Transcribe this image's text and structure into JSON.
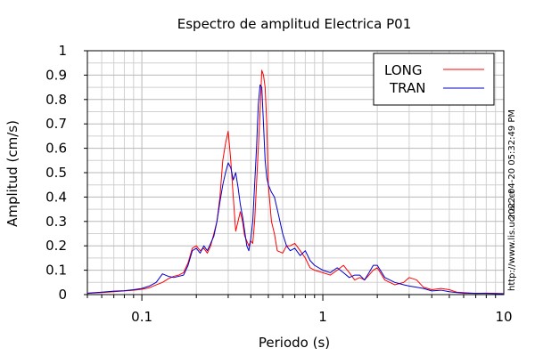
{
  "header": {
    "title": "Espectro de amplitud Electrica P01"
  },
  "side": {
    "timestamp": "2022-04-20 05:32:49 PM",
    "url": "http://www.lis.ucr.ac.cr"
  },
  "chart_data": {
    "type": "line",
    "title": "Espectro de amplitud Electrica P01",
    "xlabel": "Periodo (s)",
    "ylabel": "Amplitud (cm/s)",
    "xscale": "log",
    "xlim": [
      0.05,
      10
    ],
    "ylim": [
      0,
      1
    ],
    "x_ticks": [
      {
        "value": 0.1,
        "label": "0.1"
      },
      {
        "value": 1,
        "label": "1"
      },
      {
        "value": 10,
        "label": "10"
      }
    ],
    "y_ticks": [
      {
        "value": 0,
        "label": "0"
      },
      {
        "value": 0.1,
        "label": "0.1"
      },
      {
        "value": 0.2,
        "label": "0.2"
      },
      {
        "value": 0.3,
        "label": "0.3"
      },
      {
        "value": 0.4,
        "label": "0.4"
      },
      {
        "value": 0.5,
        "label": "0.5"
      },
      {
        "value": 0.6,
        "label": "0.6"
      },
      {
        "value": 0.7,
        "label": "0.7"
      },
      {
        "value": 0.8,
        "label": "0.8"
      },
      {
        "value": 0.9,
        "label": "0.9"
      },
      {
        "value": 1,
        "label": "1"
      }
    ],
    "grid": true,
    "legend_position": "top-right",
    "series": [
      {
        "name": "LONG",
        "color": "#ff0000",
        "points": [
          [
            0.05,
            0.005
          ],
          [
            0.06,
            0.008
          ],
          [
            0.07,
            0.012
          ],
          [
            0.08,
            0.015
          ],
          [
            0.09,
            0.018
          ],
          [
            0.1,
            0.022
          ],
          [
            0.11,
            0.028
          ],
          [
            0.12,
            0.04
          ],
          [
            0.13,
            0.05
          ],
          [
            0.14,
            0.065
          ],
          [
            0.15,
            0.075
          ],
          [
            0.16,
            0.08
          ],
          [
            0.17,
            0.09
          ],
          [
            0.18,
            0.13
          ],
          [
            0.19,
            0.19
          ],
          [
            0.2,
            0.2
          ],
          [
            0.21,
            0.18
          ],
          [
            0.22,
            0.19
          ],
          [
            0.23,
            0.17
          ],
          [
            0.24,
            0.2
          ],
          [
            0.25,
            0.25
          ],
          [
            0.26,
            0.3
          ],
          [
            0.27,
            0.4
          ],
          [
            0.28,
            0.55
          ],
          [
            0.29,
            0.62
          ],
          [
            0.3,
            0.67
          ],
          [
            0.31,
            0.55
          ],
          [
            0.32,
            0.4
          ],
          [
            0.33,
            0.26
          ],
          [
            0.34,
            0.3
          ],
          [
            0.35,
            0.34
          ],
          [
            0.36,
            0.3
          ],
          [
            0.37,
            0.24
          ],
          [
            0.38,
            0.22
          ],
          [
            0.39,
            0.2
          ],
          [
            0.4,
            0.22
          ],
          [
            0.41,
            0.21
          ],
          [
            0.42,
            0.3
          ],
          [
            0.43,
            0.45
          ],
          [
            0.44,
            0.6
          ],
          [
            0.45,
            0.75
          ],
          [
            0.46,
            0.92
          ],
          [
            0.47,
            0.9
          ],
          [
            0.48,
            0.85
          ],
          [
            0.49,
            0.7
          ],
          [
            0.5,
            0.45
          ],
          [
            0.52,
            0.3
          ],
          [
            0.54,
            0.25
          ],
          [
            0.56,
            0.18
          ],
          [
            0.6,
            0.17
          ],
          [
            0.63,
            0.2
          ],
          [
            0.66,
            0.2
          ],
          [
            0.7,
            0.21
          ],
          [
            0.75,
            0.18
          ],
          [
            0.8,
            0.15
          ],
          [
            0.85,
            0.11
          ],
          [
            0.9,
            0.1
          ],
          [
            1.0,
            0.09
          ],
          [
            1.1,
            0.08
          ],
          [
            1.2,
            0.1
          ],
          [
            1.3,
            0.12
          ],
          [
            1.4,
            0.09
          ],
          [
            1.5,
            0.06
          ],
          [
            1.6,
            0.07
          ],
          [
            1.7,
            0.06
          ],
          [
            1.8,
            0.08
          ],
          [
            1.9,
            0.1
          ],
          [
            2.0,
            0.11
          ],
          [
            2.2,
            0.06
          ],
          [
            2.5,
            0.04
          ],
          [
            2.8,
            0.05
          ],
          [
            3.0,
            0.07
          ],
          [
            3.3,
            0.06
          ],
          [
            3.6,
            0.03
          ],
          [
            4.0,
            0.02
          ],
          [
            4.5,
            0.025
          ],
          [
            5.0,
            0.02
          ],
          [
            5.5,
            0.01
          ],
          [
            6.0,
            0.008
          ],
          [
            7.0,
            0.005
          ],
          [
            8.0,
            0.006
          ],
          [
            10.0,
            0.004
          ]
        ]
      },
      {
        "name": "TRAN",
        "color": "#0000cc",
        "points": [
          [
            0.05,
            0.006
          ],
          [
            0.06,
            0.01
          ],
          [
            0.07,
            0.014
          ],
          [
            0.08,
            0.016
          ],
          [
            0.09,
            0.02
          ],
          [
            0.1,
            0.025
          ],
          [
            0.11,
            0.035
          ],
          [
            0.12,
            0.05
          ],
          [
            0.13,
            0.085
          ],
          [
            0.14,
            0.075
          ],
          [
            0.15,
            0.07
          ],
          [
            0.16,
            0.075
          ],
          [
            0.17,
            0.08
          ],
          [
            0.18,
            0.12
          ],
          [
            0.19,
            0.18
          ],
          [
            0.2,
            0.19
          ],
          [
            0.21,
            0.17
          ],
          [
            0.22,
            0.2
          ],
          [
            0.23,
            0.18
          ],
          [
            0.24,
            0.21
          ],
          [
            0.25,
            0.24
          ],
          [
            0.26,
            0.3
          ],
          [
            0.27,
            0.38
          ],
          [
            0.28,
            0.45
          ],
          [
            0.29,
            0.5
          ],
          [
            0.3,
            0.54
          ],
          [
            0.31,
            0.52
          ],
          [
            0.32,
            0.47
          ],
          [
            0.33,
            0.5
          ],
          [
            0.34,
            0.44
          ],
          [
            0.35,
            0.37
          ],
          [
            0.36,
            0.32
          ],
          [
            0.37,
            0.26
          ],
          [
            0.38,
            0.2
          ],
          [
            0.39,
            0.18
          ],
          [
            0.4,
            0.23
          ],
          [
            0.41,
            0.3
          ],
          [
            0.42,
            0.45
          ],
          [
            0.43,
            0.6
          ],
          [
            0.44,
            0.78
          ],
          [
            0.45,
            0.86
          ],
          [
            0.46,
            0.85
          ],
          [
            0.47,
            0.7
          ],
          [
            0.48,
            0.55
          ],
          [
            0.49,
            0.48
          ],
          [
            0.5,
            0.45
          ],
          [
            0.52,
            0.42
          ],
          [
            0.54,
            0.4
          ],
          [
            0.56,
            0.35
          ],
          [
            0.6,
            0.25
          ],
          [
            0.63,
            0.2
          ],
          [
            0.66,
            0.18
          ],
          [
            0.7,
            0.19
          ],
          [
            0.75,
            0.16
          ],
          [
            0.8,
            0.18
          ],
          [
            0.85,
            0.14
          ],
          [
            0.9,
            0.12
          ],
          [
            1.0,
            0.1
          ],
          [
            1.1,
            0.09
          ],
          [
            1.2,
            0.11
          ],
          [
            1.3,
            0.09
          ],
          [
            1.4,
            0.07
          ],
          [
            1.5,
            0.08
          ],
          [
            1.6,
            0.08
          ],
          [
            1.7,
            0.06
          ],
          [
            1.8,
            0.09
          ],
          [
            1.9,
            0.12
          ],
          [
            2.0,
            0.12
          ],
          [
            2.2,
            0.07
          ],
          [
            2.5,
            0.05
          ],
          [
            2.8,
            0.04
          ],
          [
            3.0,
            0.035
          ],
          [
            3.3,
            0.03
          ],
          [
            3.6,
            0.025
          ],
          [
            4.0,
            0.015
          ],
          [
            4.5,
            0.018
          ],
          [
            5.0,
            0.012
          ],
          [
            5.5,
            0.008
          ],
          [
            6.0,
            0.006
          ],
          [
            7.0,
            0.005
          ],
          [
            8.0,
            0.005
          ],
          [
            10.0,
            0.003
          ]
        ]
      }
    ]
  }
}
